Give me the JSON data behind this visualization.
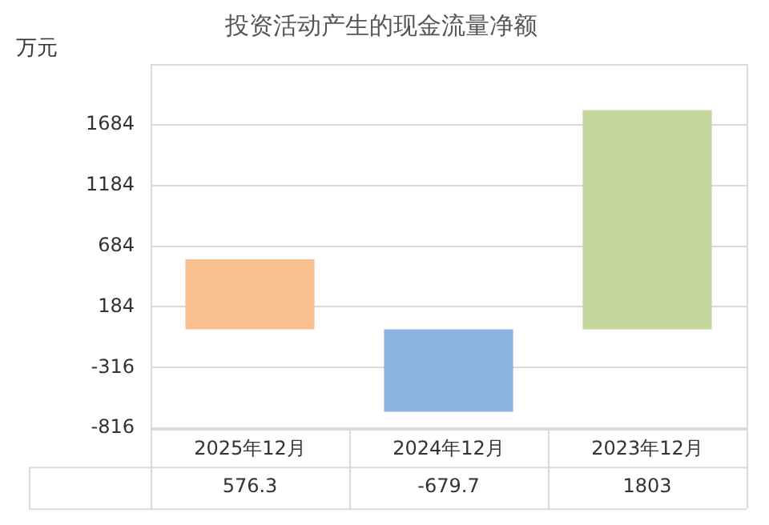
{
  "chart_data": {
    "type": "bar",
    "title": "投资活动产生的现金流量净额",
    "ylabel": "万元",
    "categories": [
      "2025年12月",
      "2024年12月",
      "2023年12月"
    ],
    "values": [
      576.3,
      -679.7,
      1803
    ],
    "colors": [
      "#f9c08f",
      "#8db3e2",
      "#c3d69b"
    ],
    "ylim": [
      -816,
      2184
    ],
    "yticks": [
      -816,
      -316,
      184,
      684,
      1184,
      1684
    ],
    "grid": "y",
    "data_labels": true
  }
}
